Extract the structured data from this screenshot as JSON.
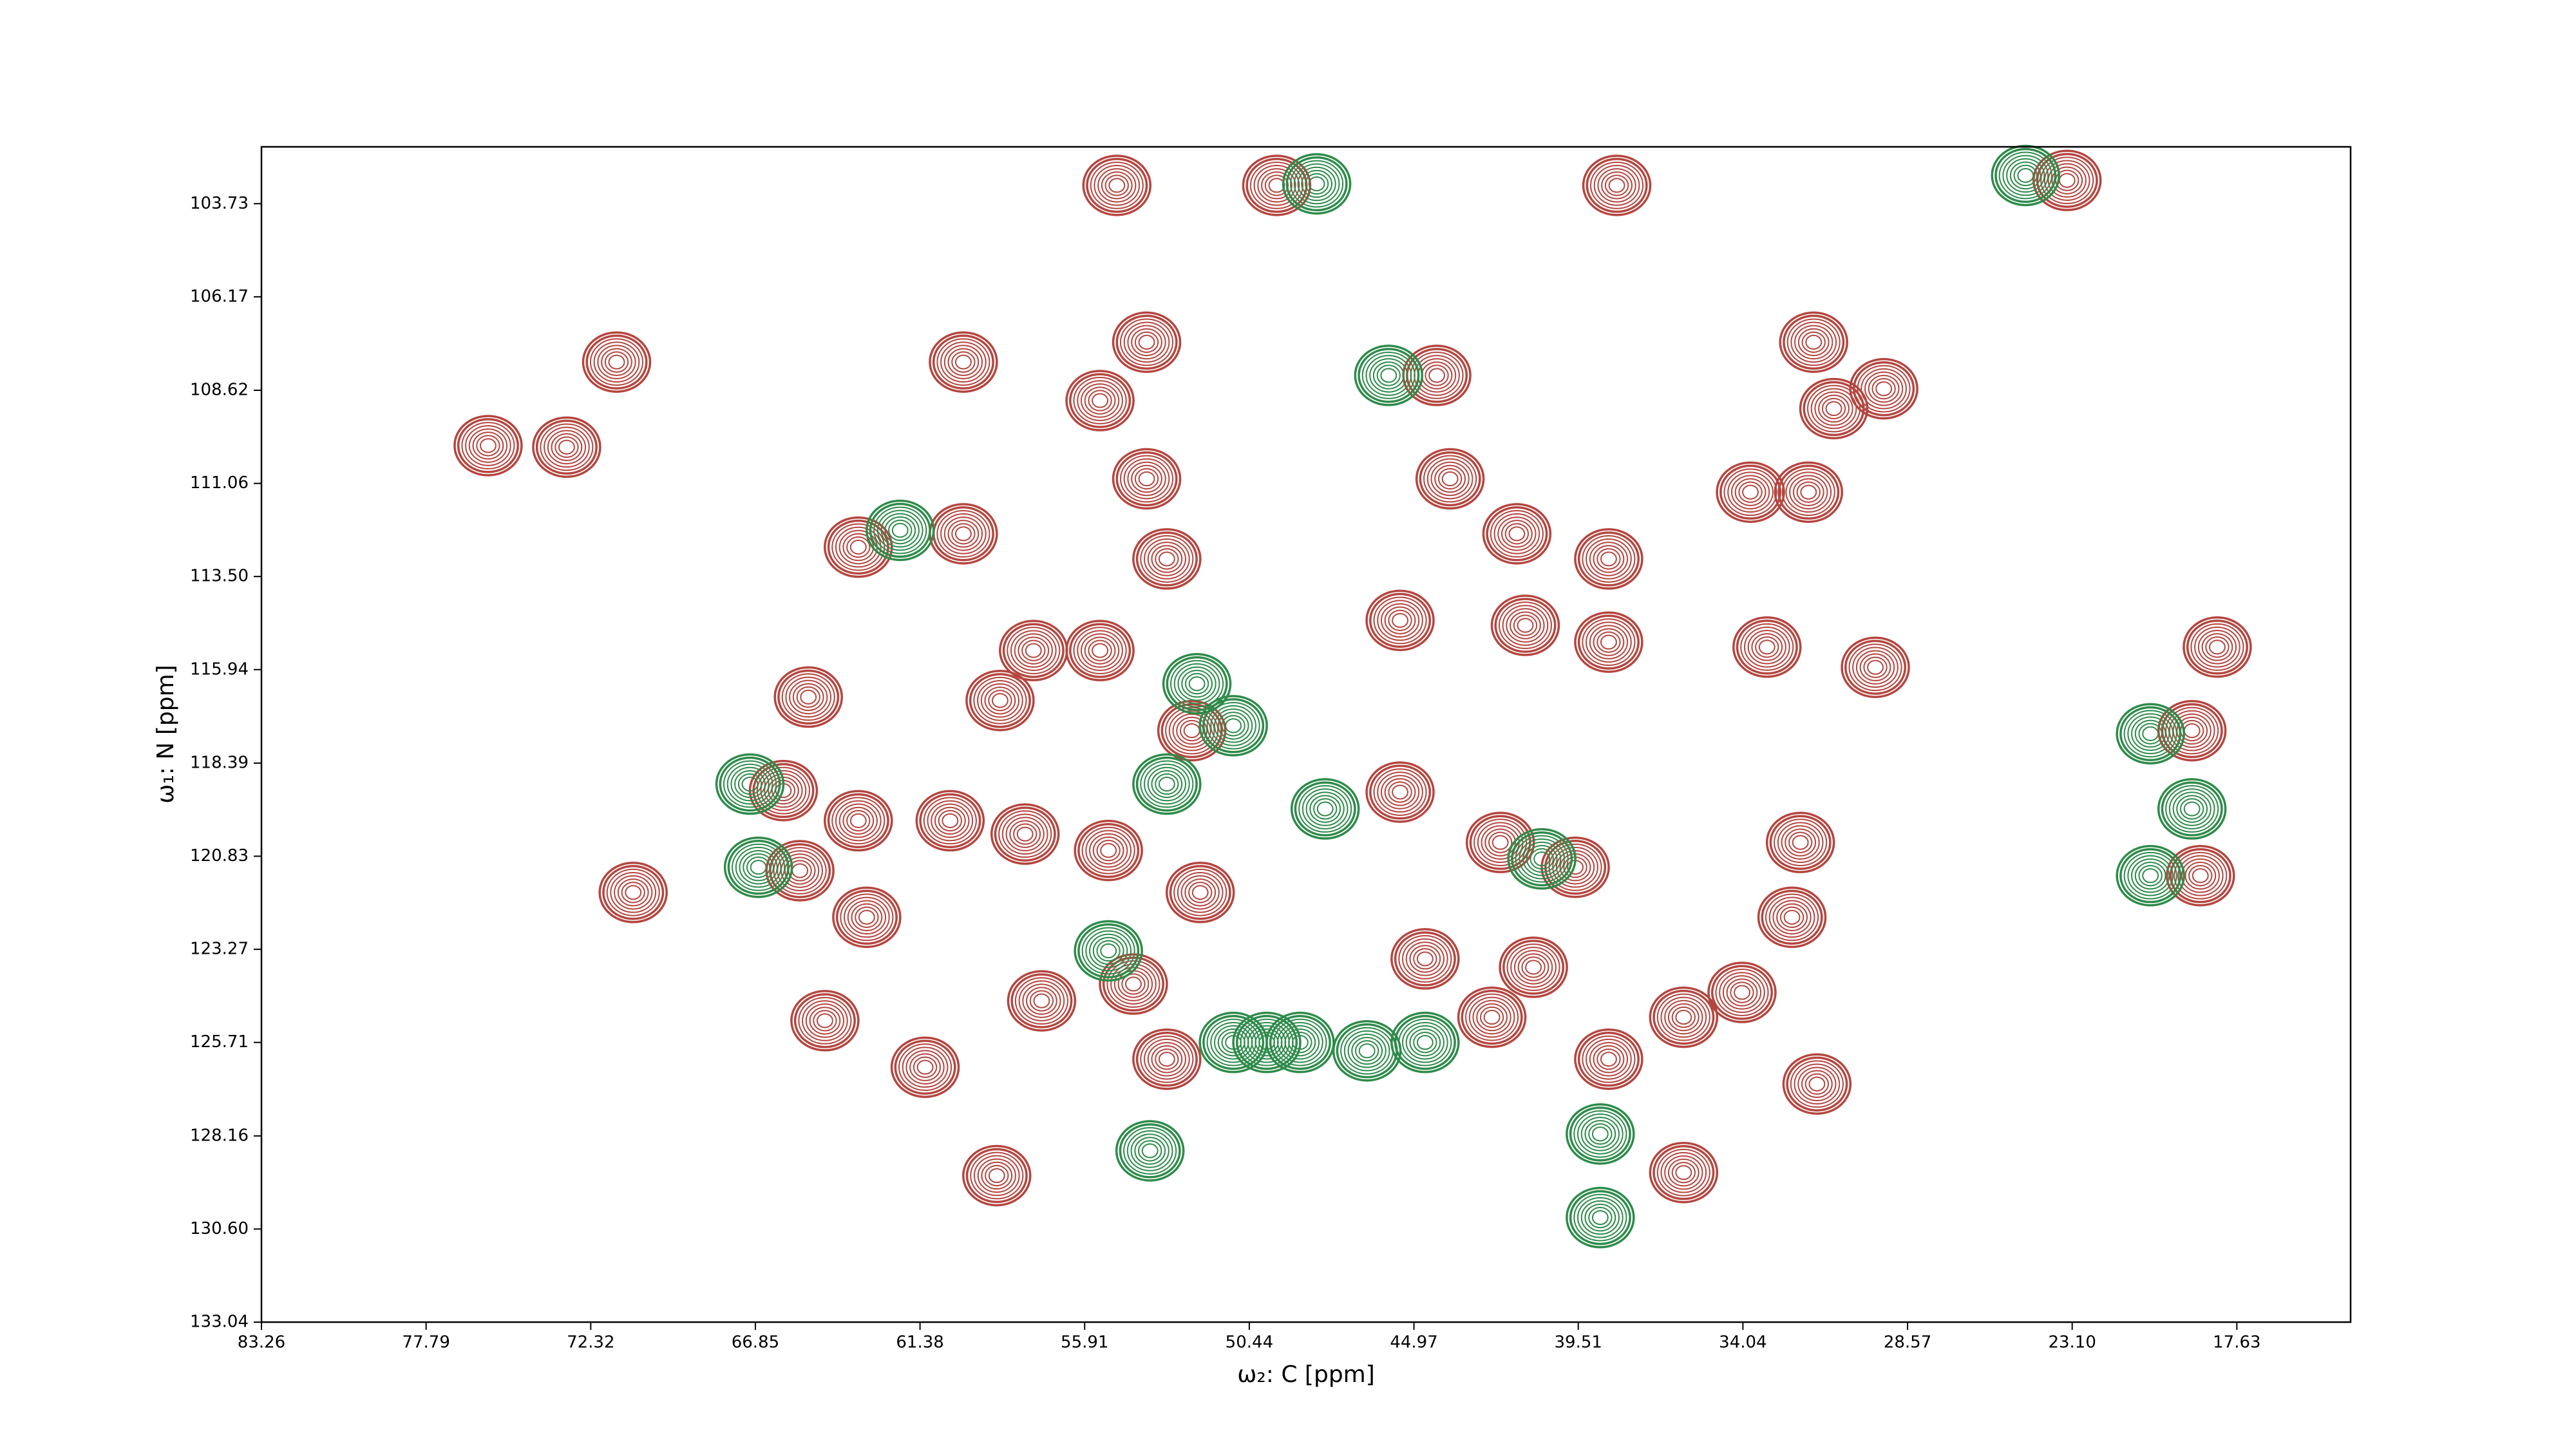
{
  "chart_data": {
    "type": "contour",
    "x_label": "ω₂: C [ppm]",
    "y_label": "ω₁: N [ppm]",
    "xlim": [
      83.26,
      13.85
    ],
    "ylim": [
      133.04,
      102.24
    ],
    "xticks": [
      83.26,
      77.79,
      72.32,
      66.85,
      61.38,
      55.91,
      50.44,
      44.97,
      39.51,
      34.04,
      28.57,
      {
        "value": 23.1,
        "label": "23.10"
      },
      17.63
    ],
    "yticks": [
      103.73,
      106.17,
      108.62,
      111.06,
      {
        "value": 113.5,
        "label": "113.50"
      },
      115.94,
      118.39,
      120.83,
      123.27,
      125.71,
      128.16,
      {
        "value": 130.6,
        "label": "130.60"
      },
      133.04
    ],
    "series": [
      {
        "color": "#b4463f",
        "x": [
          54.84,
          49.53,
          38.23,
          23.27,
          59.94,
          53.85,
          55.4,
          44.21,
          31.69,
          29.36,
          31.02,
          75.73,
          73.12,
          53.85,
          43.77,
          33.79,
          31.86,
          63.43,
          59.94,
          53.18,
          38.5,
          41.55,
          45.43,
          41.27,
          38.5,
          33.24,
          29.64,
          18.28,
          57.61,
          55.4,
          65.09,
          52.35,
          58.72,
          19.12,
          65.92,
          63.43,
          60.38,
          57.89,
          55.12,
          45.43,
          42.1,
          39.61,
          32.13,
          18.84,
          65.37,
          63.15,
          52.07,
          44.6,
          41.0,
          34.07,
          32.41,
          64.54,
          61.21,
          57.34,
          54.29,
          53.18,
          42.38,
          38.5,
          36.01,
          31.58,
          58.83,
          36.01,
          70.91,
          71.46
        ],
        "y": [
          103.25,
          103.25,
          103.25,
          103.12,
          107.88,
          107.36,
          108.89,
          108.23,
          107.36,
          108.58,
          109.1,
          110.07,
          110.11,
          110.94,
          110.94,
          111.29,
          111.29,
          112.73,
          112.38,
          113.04,
          113.04,
          112.38,
          114.65,
          114.78,
          115.22,
          115.35,
          115.88,
          115.35,
          115.44,
          115.44,
          116.66,
          117.54,
          116.75,
          117.54,
          119.11,
          119.9,
          119.9,
          120.25,
          120.68,
          119.15,
          120.47,
          121.12,
          120.47,
          121.34,
          121.21,
          122.43,
          121.78,
          123.52,
          123.74,
          124.4,
          122.43,
          125.14,
          126.36,
          124.62,
          124.18,
          126.15,
          125.05,
          126.15,
          125.05,
          126.8,
          129.2,
          129.12,
          121.78,
          107.88
        ]
      },
      {
        "color": "#2e8b4a",
        "x": [
          52.18,
          50.97,
          53.18,
          50.97,
          53.74,
          38.78,
          48.2,
          45.81,
          62.04,
          20.5,
          20.5,
          47.92,
          40.72,
          55.12,
          49.86,
          48.75,
          46.53,
          44.6,
          38.78,
          24.65,
          19.12,
          67.03,
          66.75
        ],
        "y": [
          116.31,
          117.41,
          118.94,
          125.71,
          128.55,
          128.11,
          103.21,
          108.23,
          112.29,
          117.62,
          121.34,
          119.59,
          120.9,
          123.31,
          125.71,
          125.71,
          125.93,
          125.71,
          130.3,
          102.99,
          119.59,
          118.94,
          121.12
        ]
      }
    ]
  }
}
